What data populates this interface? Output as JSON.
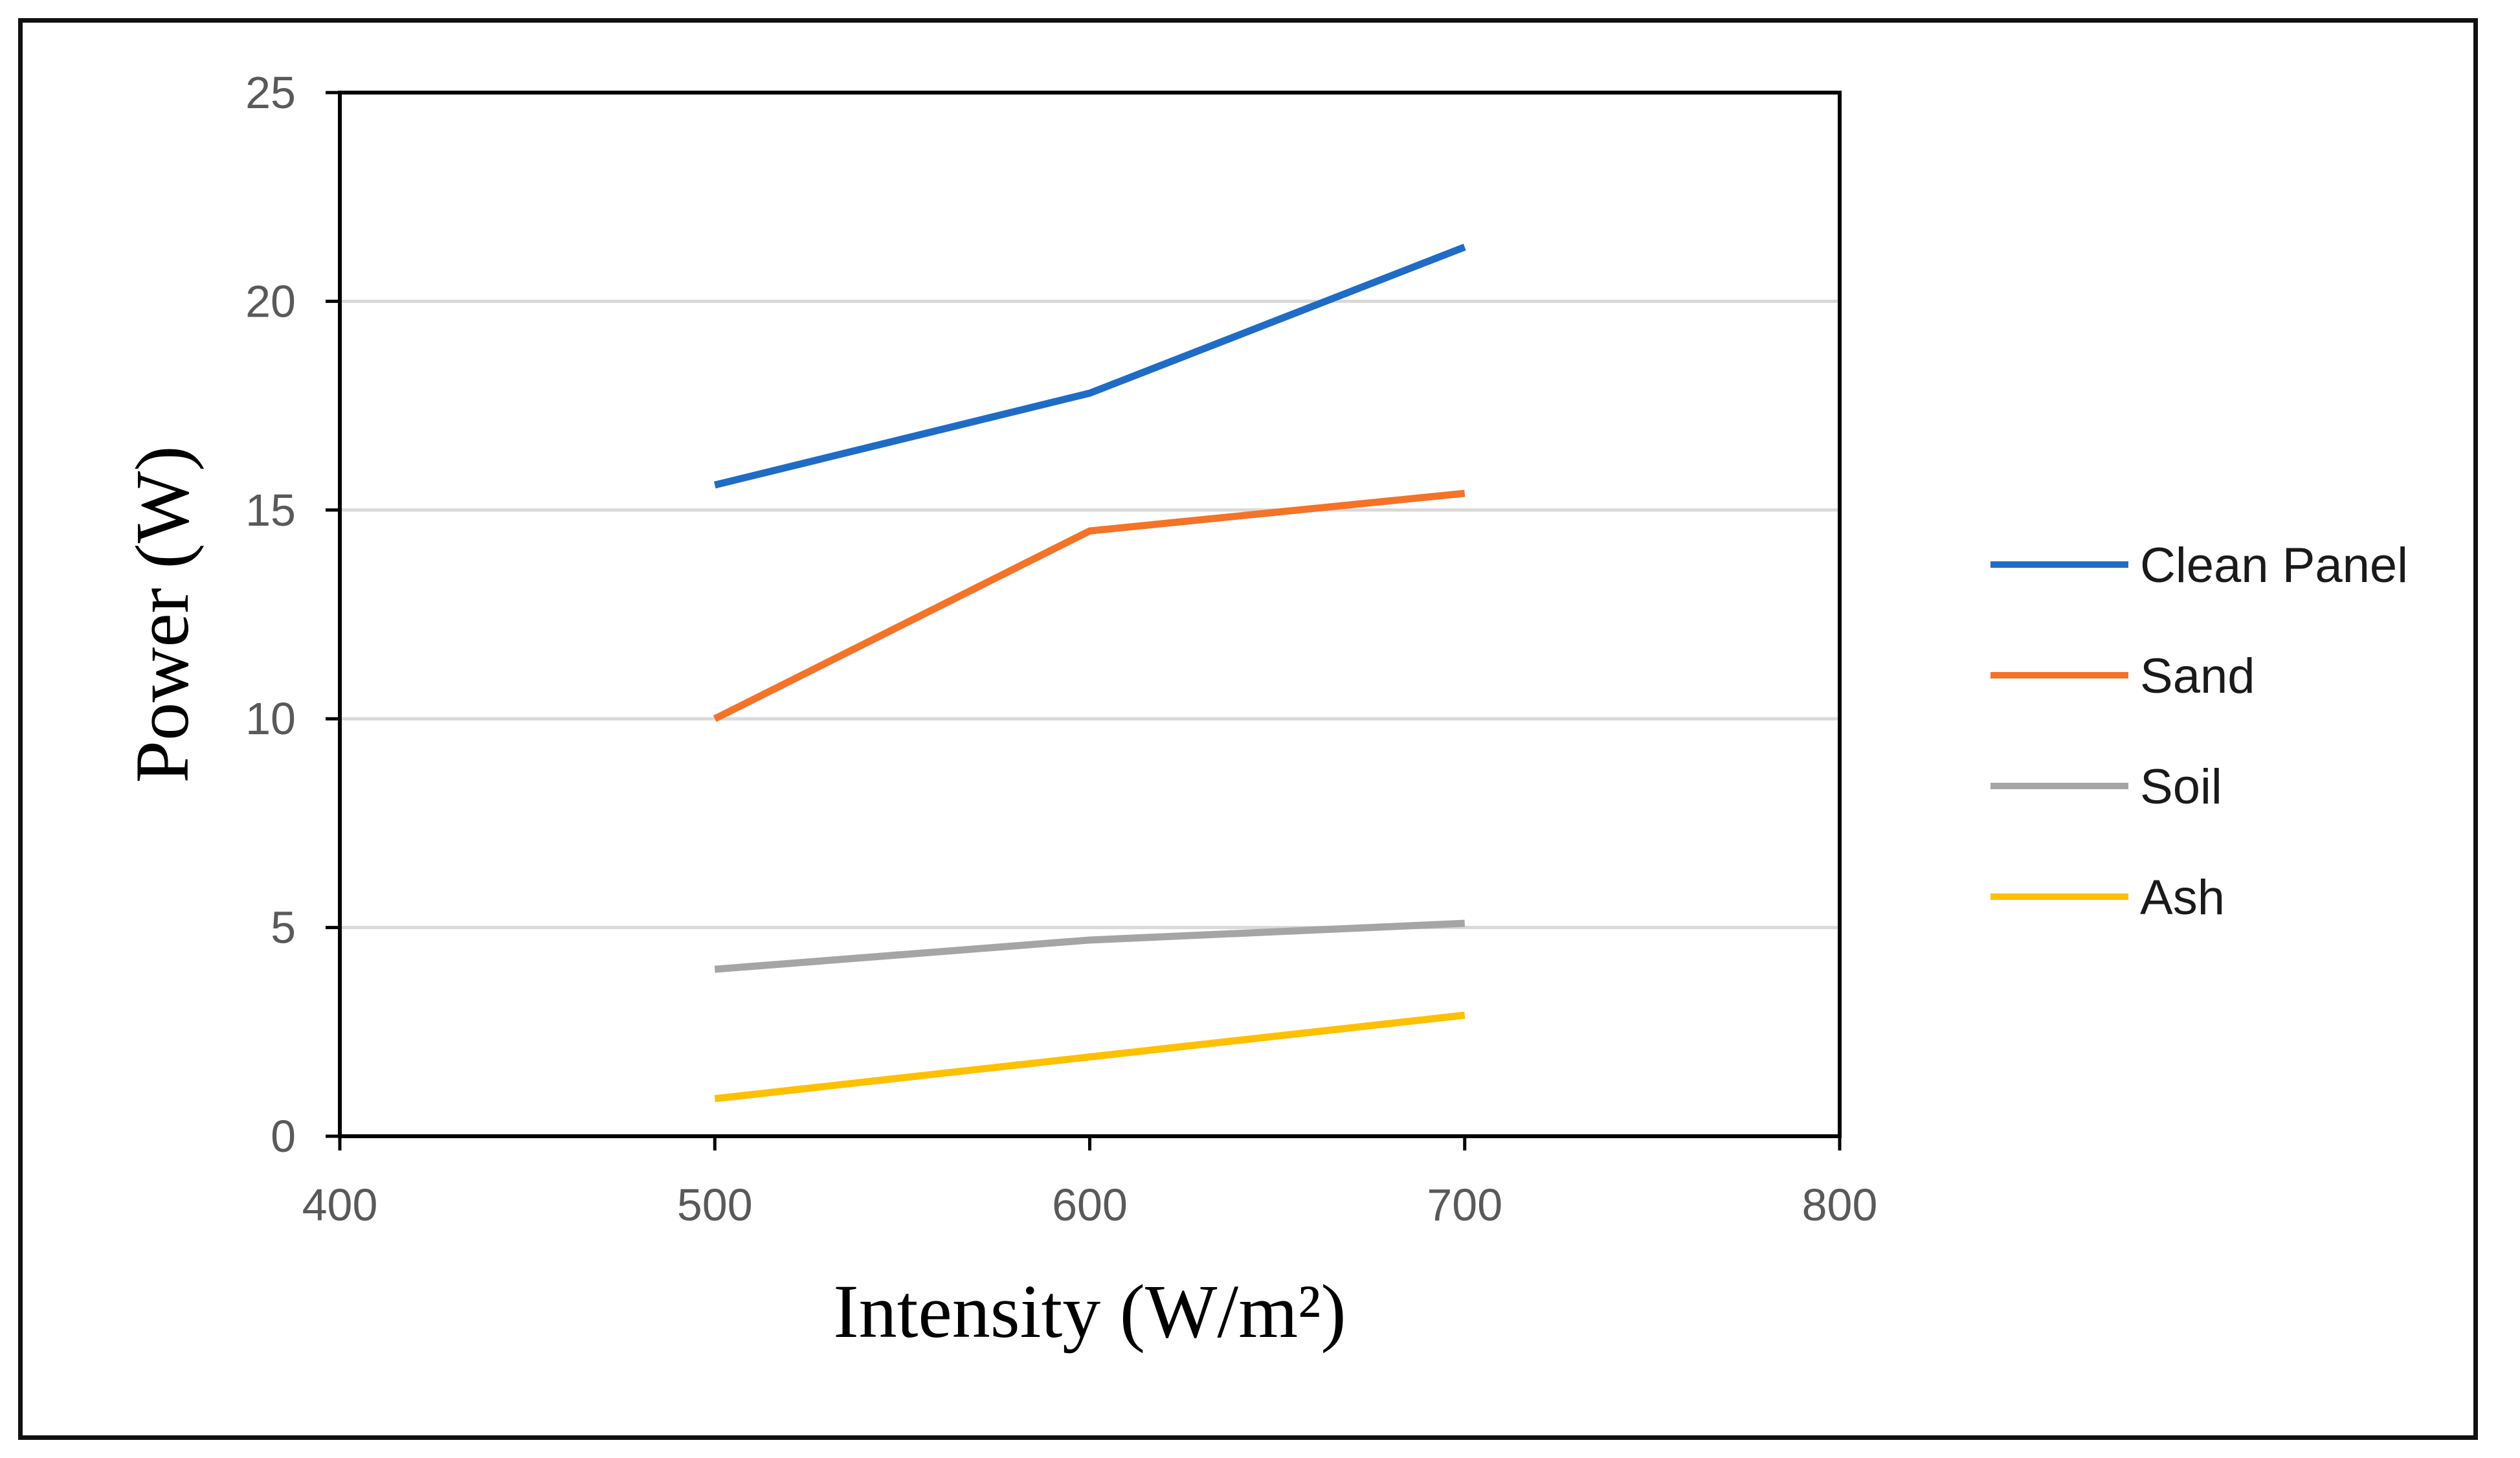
{
  "chart_data": {
    "type": "line",
    "title": "",
    "xlabel": "Intensity (W/m²)",
    "ylabel": "Power (W)",
    "x": [
      500,
      600,
      700
    ],
    "xlim": [
      400,
      800
    ],
    "ylim": [
      0,
      25
    ],
    "xticks": [
      400,
      500,
      600,
      700,
      800
    ],
    "yticks": [
      0,
      5,
      10,
      15,
      20,
      25
    ],
    "grid": "horizontal",
    "legend_position": "right",
    "series": [
      {
        "name": "Clean Panel",
        "color": "#1F6CC6",
        "values": [
          15.6,
          17.8,
          21.3
        ]
      },
      {
        "name": "Sand",
        "color": "#F47328",
        "values": [
          10.0,
          14.5,
          15.4
        ]
      },
      {
        "name": "Soil",
        "color": "#A5A5A5",
        "values": [
          4.0,
          4.7,
          5.1
        ]
      },
      {
        "name": "Ash",
        "color": "#FFC000",
        "values": [
          0.9,
          1.9,
          2.9
        ]
      }
    ]
  }
}
